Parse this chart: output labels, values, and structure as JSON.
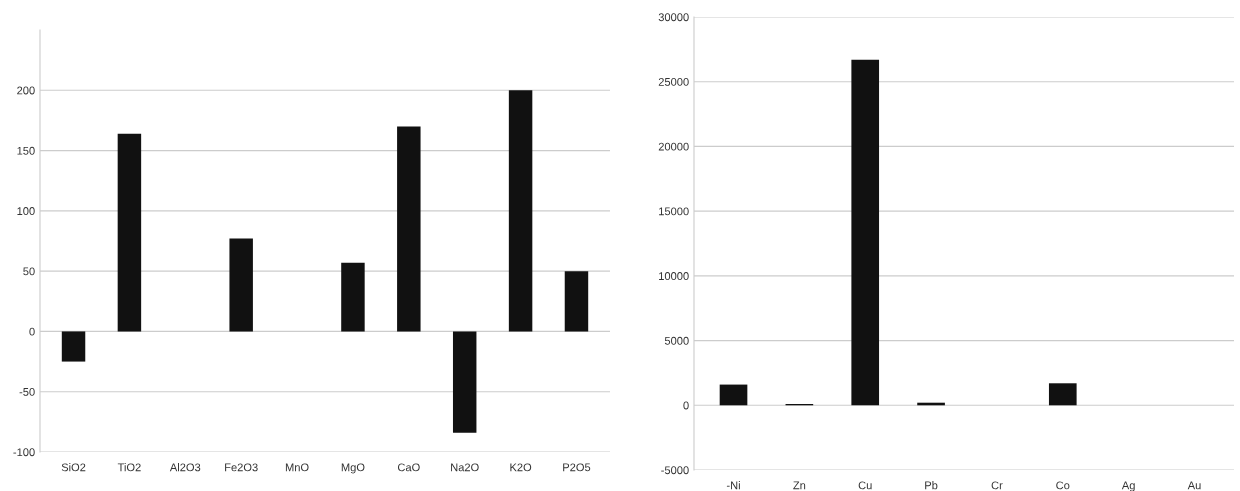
{
  "chart_data": [
    {
      "type": "bar",
      "categories": [
        "SiO2",
        "TiO2",
        "Al2O3",
        "Fe2O3",
        "MnO",
        "MgO",
        "CaO",
        "Na2O",
        "K2O",
        "P2O5"
      ],
      "values": [
        -25,
        164,
        0,
        77,
        0,
        57,
        170,
        -84,
        200,
        50
      ],
      "color": "#111111",
      "ylim": [
        -100,
        250
      ],
      "yticks": [
        -100,
        -50,
        0,
        50,
        100,
        150,
        200
      ],
      "grid": "y"
    },
    {
      "type": "bar",
      "categories": [
        "-Ni",
        "Zn",
        "Cu",
        "Pb",
        "Cr",
        "Co",
        "Ag",
        "Au"
      ],
      "values": [
        1600,
        100,
        26700,
        200,
        0,
        1700,
        0,
        0
      ],
      "color": "#111111",
      "ylim": [
        -5000,
        30000
      ],
      "yticks": [
        -5000,
        0,
        5000,
        10000,
        15000,
        20000,
        25000,
        30000
      ],
      "grid": "y"
    }
  ]
}
